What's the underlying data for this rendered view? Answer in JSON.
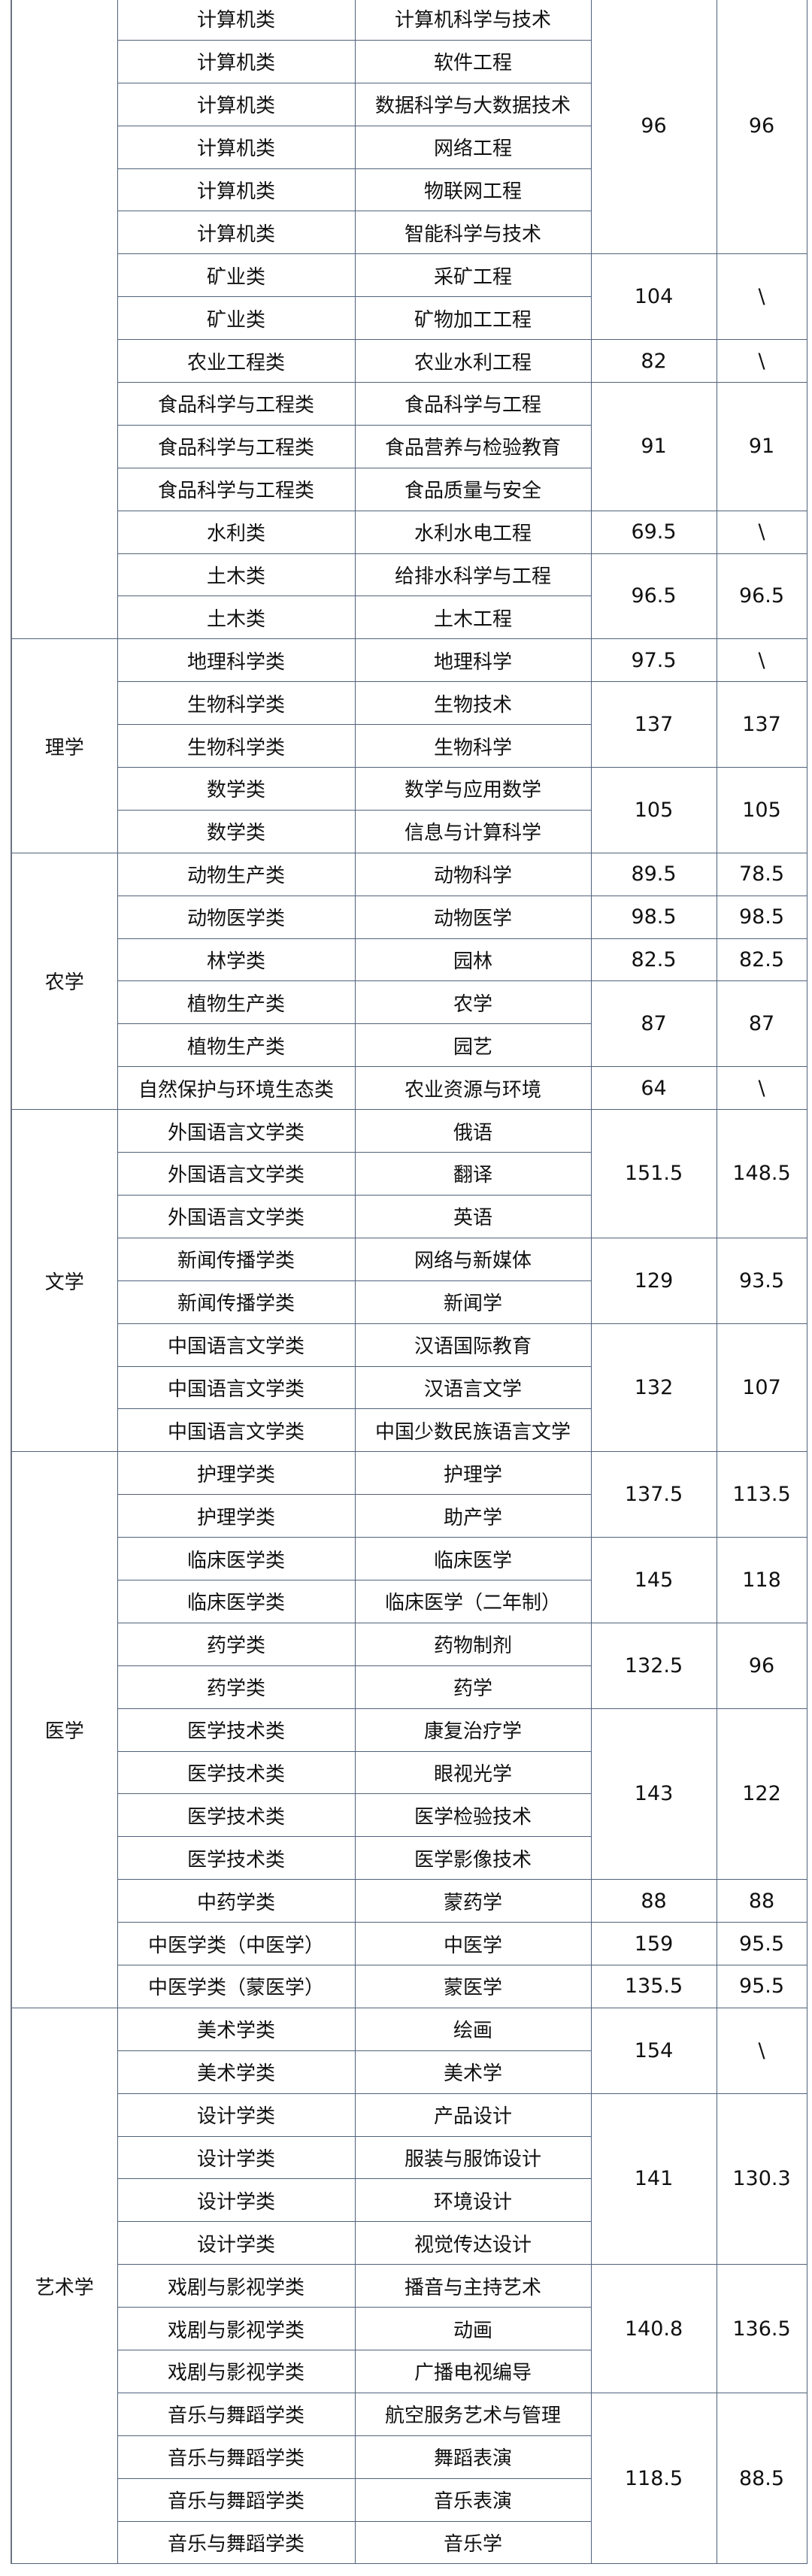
{
  "columns_visible": 5,
  "groups": [
    {
      "discipline": "",
      "subgroups": [
        {
          "score1": "96",
          "score2": "96",
          "rows": [
            [
              "计算机类",
              "计算机科学与技术"
            ],
            [
              "计算机类",
              "软件工程"
            ],
            [
              "计算机类",
              "数据科学与大数据技术"
            ],
            [
              "计算机类",
              "网络工程"
            ],
            [
              "计算机类",
              "物联网工程"
            ],
            [
              "计算机类",
              "智能科学与技术"
            ]
          ]
        },
        {
          "score1": "104",
          "score2": "\\",
          "rows": [
            [
              "矿业类",
              "采矿工程"
            ],
            [
              "矿业类",
              "矿物加工工程"
            ]
          ]
        },
        {
          "score1": "82",
          "score2": "\\",
          "rows": [
            [
              "农业工程类",
              "农业水利工程"
            ]
          ]
        },
        {
          "score1": "91",
          "score2": "91",
          "rows": [
            [
              "食品科学与工程类",
              "食品科学与工程"
            ],
            [
              "食品科学与工程类",
              "食品营养与检验教育"
            ],
            [
              "食品科学与工程类",
              "食品质量与安全"
            ]
          ]
        },
        {
          "score1": "69.5",
          "score2": "\\",
          "rows": [
            [
              "水利类",
              "水利水电工程"
            ]
          ]
        },
        {
          "score1": "96.5",
          "score2": "96.5",
          "rows": [
            [
              "土木类",
              "给排水科学与工程"
            ],
            [
              "土木类",
              "土木工程"
            ]
          ]
        }
      ]
    },
    {
      "discipline": "理学",
      "subgroups": [
        {
          "score1": "97.5",
          "score2": "\\",
          "rows": [
            [
              "地理科学类",
              "地理科学"
            ]
          ]
        },
        {
          "score1": "137",
          "score2": "137",
          "rows": [
            [
              "生物科学类",
              "生物技术"
            ],
            [
              "生物科学类",
              "生物科学"
            ]
          ]
        },
        {
          "score1": "105",
          "score2": "105",
          "rows": [
            [
              "数学类",
              "数学与应用数学"
            ],
            [
              "数学类",
              "信息与计算科学"
            ]
          ]
        }
      ]
    },
    {
      "discipline": "农学",
      "subgroups": [
        {
          "score1": "89.5",
          "score2": "78.5",
          "rows": [
            [
              "动物生产类",
              "动物科学"
            ]
          ]
        },
        {
          "score1": "98.5",
          "score2": "98.5",
          "rows": [
            [
              "动物医学类",
              "动物医学"
            ]
          ]
        },
        {
          "score1": "82.5",
          "score2": "82.5",
          "rows": [
            [
              "林学类",
              "园林"
            ]
          ]
        },
        {
          "score1": "87",
          "score2": "87",
          "rows": [
            [
              "植物生产类",
              "农学"
            ],
            [
              "植物生产类",
              "园艺"
            ]
          ]
        },
        {
          "score1": "64",
          "score2": "\\",
          "rows": [
            [
              "自然保护与环境生态类",
              "农业资源与环境"
            ]
          ]
        }
      ]
    },
    {
      "discipline": "文学",
      "subgroups": [
        {
          "score1": "151.5",
          "score2": "148.5",
          "rows": [
            [
              "外国语言文学类",
              "俄语"
            ],
            [
              "外国语言文学类",
              "翻译"
            ],
            [
              "外国语言文学类",
              "英语"
            ]
          ]
        },
        {
          "score1": "129",
          "score2": "93.5",
          "rows": [
            [
              "新闻传播学类",
              "网络与新媒体"
            ],
            [
              "新闻传播学类",
              "新闻学"
            ]
          ]
        },
        {
          "score1": "132",
          "score2": "107",
          "rows": [
            [
              "中国语言文学类",
              "汉语国际教育"
            ],
            [
              "中国语言文学类",
              "汉语言文学"
            ],
            [
              "中国语言文学类",
              "中国少数民族语言文学"
            ]
          ]
        }
      ]
    },
    {
      "discipline": "医学",
      "subgroups": [
        {
          "score1": "137.5",
          "score2": "113.5",
          "rows": [
            [
              "护理学类",
              "护理学"
            ],
            [
              "护理学类",
              "助产学"
            ]
          ]
        },
        {
          "score1": "145",
          "score2": "118",
          "rows": [
            [
              "临床医学类",
              "临床医学"
            ],
            [
              "临床医学类",
              "临床医学（二年制）"
            ]
          ]
        },
        {
          "score1": "132.5",
          "score2": "96",
          "rows": [
            [
              "药学类",
              "药物制剂"
            ],
            [
              "药学类",
              "药学"
            ]
          ]
        },
        {
          "score1": "143",
          "score2": "122",
          "rows": [
            [
              "医学技术类",
              "康复治疗学"
            ],
            [
              "医学技术类",
              "眼视光学"
            ],
            [
              "医学技术类",
              "医学检验技术"
            ],
            [
              "医学技术类",
              "医学影像技术"
            ]
          ]
        },
        {
          "score1": "88",
          "score2": "88",
          "rows": [
            [
              "中药学类",
              "蒙药学"
            ]
          ]
        },
        {
          "score1": "159",
          "score2": "95.5",
          "rows": [
            [
              "中医学类（中医学）",
              "中医学"
            ]
          ]
        },
        {
          "score1": "135.5",
          "score2": "95.5",
          "rows": [
            [
              "中医学类（蒙医学）",
              "蒙医学"
            ]
          ]
        }
      ]
    },
    {
      "discipline": "艺术学",
      "subgroups": [
        {
          "score1": "154",
          "score2": "\\",
          "rows": [
            [
              "美术学类",
              "绘画"
            ],
            [
              "美术学类",
              "美术学"
            ]
          ]
        },
        {
          "score1": "141",
          "score2": "130.3",
          "rows": [
            [
              "设计学类",
              "产品设计"
            ],
            [
              "设计学类",
              "服装与服饰设计"
            ],
            [
              "设计学类",
              "环境设计"
            ],
            [
              "设计学类",
              "视觉传达设计"
            ]
          ]
        },
        {
          "score1": "140.8",
          "score2": "136.5",
          "rows": [
            [
              "戏剧与影视学类",
              "播音与主持艺术"
            ],
            [
              "戏剧与影视学类",
              "动画"
            ],
            [
              "戏剧与影视学类",
              "广播电视编导"
            ]
          ]
        },
        {
          "score1": "118.5",
          "score2": "88.5",
          "rows": [
            [
              "音乐与舞蹈学类",
              "航空服务艺术与管理"
            ],
            [
              "音乐与舞蹈学类",
              "舞蹈表演"
            ],
            [
              "音乐与舞蹈学类",
              "音乐表演"
            ],
            [
              "音乐与舞蹈学类",
              "音乐学"
            ]
          ]
        }
      ]
    }
  ]
}
